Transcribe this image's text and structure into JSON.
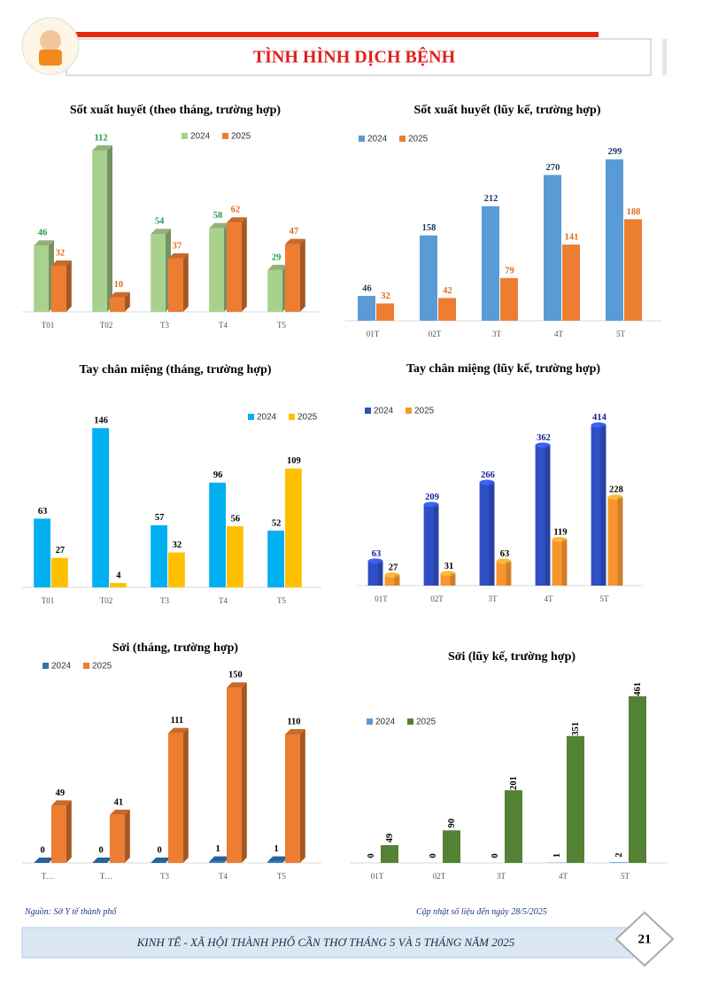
{
  "header": {
    "title": "TÌNH HÌNH DỊCH BỆNH"
  },
  "chart_data": [
    {
      "type": "bar",
      "title": "Sốt xuất huyết (theo tháng, trường hợp)",
      "categories": [
        "T01",
        "T02",
        "T3",
        "T4",
        "T5"
      ],
      "ylim": [
        0,
        120
      ],
      "series": [
        {
          "name": "2024",
          "color": "#a9d18e",
          "label_color": "#1e9e4a",
          "values": [
            46,
            112,
            54,
            58,
            29
          ]
        },
        {
          "name": "2025",
          "color": "#ed7d31",
          "label_color": "#e06a1a",
          "values": [
            32,
            10,
            37,
            62,
            47
          ]
        }
      ]
    },
    {
      "type": "bar",
      "title": "Sốt xuất huyết (lũy kế, trường hợp)",
      "categories": [
        "01T",
        "02T",
        "3T",
        "4T",
        "5T"
      ],
      "ylim": [
        0,
        320
      ],
      "series": [
        {
          "name": "2024",
          "color": "#5b9bd5",
          "label_color": "#1f3864",
          "values": [
            46,
            158,
            212,
            270,
            299
          ]
        },
        {
          "name": "2025",
          "color": "#ed7d31",
          "label_color": "#e06a1a",
          "values": [
            32,
            42,
            79,
            141,
            188
          ]
        }
      ]
    },
    {
      "type": "bar",
      "title": "Tay chân miệng (tháng, trường hợp)",
      "categories": [
        "T01",
        "T02",
        "T3",
        "T4",
        "T5"
      ],
      "ylim": [
        0,
        160
      ],
      "series": [
        {
          "name": "2024",
          "color": "#00b0f0",
          "label_color": "#000000",
          "values": [
            63,
            146,
            57,
            96,
            52
          ]
        },
        {
          "name": "2025",
          "color": "#ffc000",
          "label_color": "#000000",
          "values": [
            27,
            4,
            32,
            56,
            109
          ]
        }
      ]
    },
    {
      "type": "bar",
      "title": "Tay chân miệng (lũy kế, trường hợp)",
      "categories": [
        "01T",
        "02T",
        "3T",
        "4T",
        "5T"
      ],
      "ylim": [
        0,
        450
      ],
      "series": [
        {
          "name": "2024",
          "color": "#2f4fc4",
          "label_color": "#1a1aa0",
          "values": [
            63,
            209,
            266,
            362,
            414
          ]
        },
        {
          "name": "2025",
          "color": "#f7952f",
          "label_color": "#000000",
          "values": [
            27,
            31,
            63,
            119,
            228
          ]
        }
      ]
    },
    {
      "type": "bar",
      "title": "Sởi (tháng, trường hợp)",
      "categories": [
        "T…",
        "T…",
        "T3",
        "T4",
        "T5"
      ],
      "ylim": [
        0,
        160
      ],
      "series": [
        {
          "name": "2024",
          "color": "#2e75b6",
          "label_color": "#000000",
          "values": [
            0,
            0,
            0,
            1,
            1
          ]
        },
        {
          "name": "2025",
          "color": "#ed7d31",
          "label_color": "#000000",
          "values": [
            49,
            41,
            111,
            150,
            110
          ]
        }
      ]
    },
    {
      "type": "bar",
      "title": "Sởi (lũy kế, trường hợp)",
      "categories": [
        "01T",
        "02T",
        "3T",
        "4T",
        "5T"
      ],
      "ylim": [
        0,
        500
      ],
      "series": [
        {
          "name": "2024",
          "color": "#5b9bd5",
          "label_color": "#000000",
          "values": [
            0,
            0,
            0,
            1,
            2
          ]
        },
        {
          "name": "2025",
          "color": "#548235",
          "label_color": "#000000",
          "values": [
            49,
            90,
            201,
            351,
            461
          ]
        }
      ]
    }
  ],
  "footer": {
    "source": "Nguồn: Sở Y tế thành phố",
    "updated": "Cập nhật số liệu đến ngày  28/5/2025",
    "banner": "KINH TẾ - XÃ HỘI THÀNH PHỐ CẦN THƠ THÁNG 5 VÀ 5 THÁNG NĂM 2025",
    "page": "21"
  }
}
